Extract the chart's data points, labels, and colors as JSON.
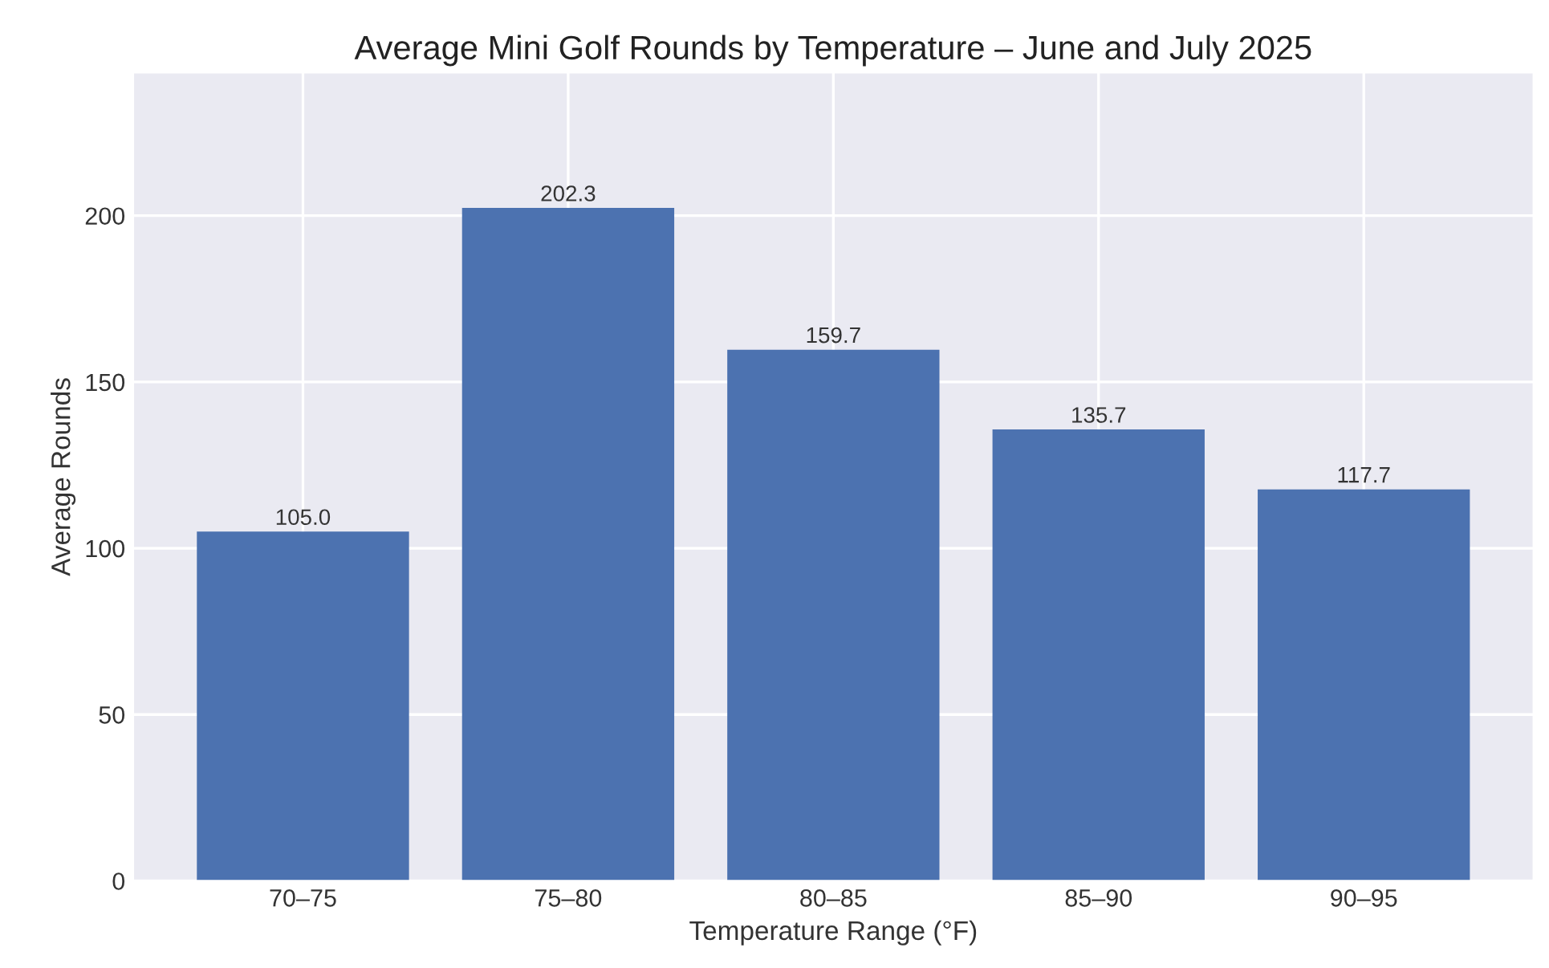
{
  "chart_data": {
    "type": "bar",
    "title": "Average Mini Golf Rounds by Temperature – June and July 2025",
    "xlabel": "Temperature Range (°F)",
    "ylabel": "Average Rounds",
    "categories": [
      "70–75",
      "75–80",
      "80–85",
      "85–90",
      "90–95"
    ],
    "values": [
      105.0,
      202.3,
      159.7,
      135.7,
      117.7
    ],
    "value_labels": [
      "105.0",
      "202.3",
      "159.7",
      "135.7",
      "117.7"
    ],
    "color": "#4c72b0",
    "ylim": [
      0,
      243
    ],
    "yticks": [
      0,
      50,
      100,
      150,
      200
    ],
    "grid": true,
    "legend": false
  }
}
